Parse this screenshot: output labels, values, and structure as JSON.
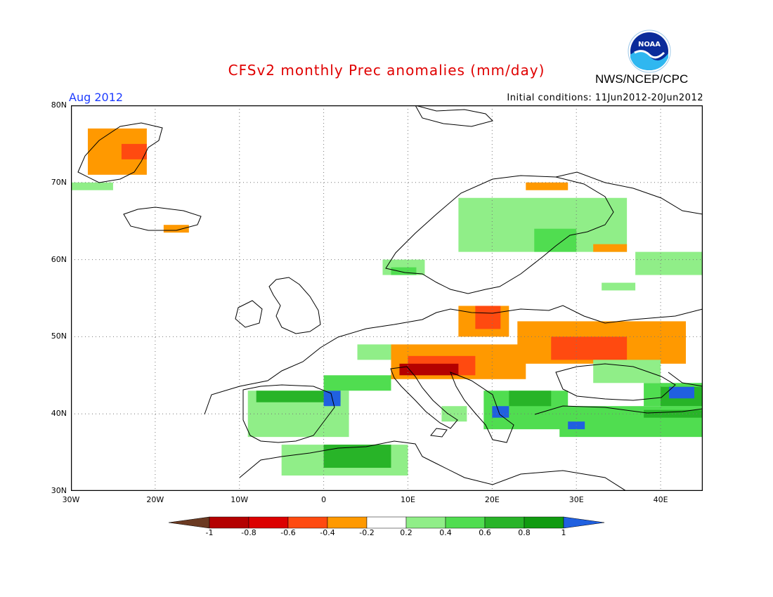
{
  "header": {
    "title": "CFSv2 monthly Prec anomalies (mm/day)",
    "period": "Aug 2012",
    "initial_conditions": "Initial conditions: 11Jun2012-20Jun2012",
    "agency": "NWS/NCEP/CPC",
    "logo_text": "NOAA"
  },
  "axes": {
    "lat_labels": [
      "80N",
      "70N",
      "60N",
      "50N",
      "40N",
      "30N"
    ],
    "lon_labels": [
      "30W",
      "20W",
      "10W",
      "0",
      "10E",
      "20E",
      "30E",
      "40E"
    ],
    "lon_range": [
      -30,
      45
    ],
    "lat_range": [
      30,
      80
    ]
  },
  "colorbar": {
    "labels": [
      "-1",
      "-0.8",
      "-0.6",
      "-0.4",
      "-0.2",
      "0.2",
      "0.4",
      "0.6",
      "0.8",
      "1"
    ],
    "colors": [
      "#6b3a22",
      "#b40000",
      "#dc0000",
      "#ff4a10",
      "#ff9900",
      "#ffffff",
      "#90ee88",
      "#50dd50",
      "#28b428",
      "#109b10",
      "#2060e0"
    ]
  },
  "anomaly_regions": [
    {
      "color": "#ff9900",
      "lon": [
        -28,
        -21
      ],
      "lat": [
        71,
        77
      ]
    },
    {
      "color": "#ff4a10",
      "lon": [
        -24,
        -21
      ],
      "lat": [
        73,
        75
      ]
    },
    {
      "color": "#90ee88",
      "lon": [
        -30,
        -25
      ],
      "lat": [
        69,
        70
      ]
    },
    {
      "color": "#ff9900",
      "lon": [
        -19,
        -16
      ],
      "lat": [
        63.5,
        64.5
      ]
    },
    {
      "color": "#ff9900",
      "lon": [
        24,
        29
      ],
      "lat": [
        69,
        70
      ]
    },
    {
      "color": "#90ee88",
      "lon": [
        16,
        36
      ],
      "lat": [
        61,
        68
      ]
    },
    {
      "color": "#50dd50",
      "lon": [
        25,
        30
      ],
      "lat": [
        61,
        64
      ]
    },
    {
      "color": "#ff9900",
      "lon": [
        32,
        36
      ],
      "lat": [
        61,
        62
      ]
    },
    {
      "color": "#90ee88",
      "lon": [
        7,
        12
      ],
      "lat": [
        58,
        60
      ]
    },
    {
      "color": "#50dd50",
      "lon": [
        8,
        11
      ],
      "lat": [
        58,
        59
      ]
    },
    {
      "color": "#90ee88",
      "lon": [
        37,
        45
      ],
      "lat": [
        58,
        61
      ]
    },
    {
      "color": "#90ee88",
      "lon": [
        33,
        37
      ],
      "lat": [
        56,
        57
      ]
    },
    {
      "color": "#ff9900",
      "lon": [
        16,
        22
      ],
      "lat": [
        50,
        54
      ]
    },
    {
      "color": "#ff4a10",
      "lon": [
        18,
        21
      ],
      "lat": [
        51,
        54
      ]
    },
    {
      "color": "#ff9900",
      "lon": [
        23,
        43
      ],
      "lat": [
        46.5,
        52
      ]
    },
    {
      "color": "#ff4a10",
      "lon": [
        27,
        36
      ],
      "lat": [
        47,
        50
      ]
    },
    {
      "color": "#ff9900",
      "lon": [
        8,
        24
      ],
      "lat": [
        44.5,
        49
      ]
    },
    {
      "color": "#ff4a10",
      "lon": [
        10,
        18
      ],
      "lat": [
        45,
        47.5
      ]
    },
    {
      "color": "#b40000",
      "lon": [
        9,
        16
      ],
      "lat": [
        45,
        46.5
      ]
    },
    {
      "color": "#90ee88",
      "lon": [
        4,
        8
      ],
      "lat": [
        47,
        49
      ]
    },
    {
      "color": "#90ee88",
      "lon": [
        -9,
        3
      ],
      "lat": [
        37,
        43
      ]
    },
    {
      "color": "#28b428",
      "lon": [
        -8,
        2
      ],
      "lat": [
        41.5,
        43
      ]
    },
    {
      "color": "#2060e0",
      "lon": [
        0,
        2
      ],
      "lat": [
        41,
        43
      ]
    },
    {
      "color": "#50dd50",
      "lon": [
        0,
        8
      ],
      "lat": [
        43,
        45
      ]
    },
    {
      "color": "#90ee88",
      "lon": [
        -5,
        10
      ],
      "lat": [
        32,
        36
      ]
    },
    {
      "color": "#28b428",
      "lon": [
        0,
        8
      ],
      "lat": [
        33,
        36
      ]
    },
    {
      "color": "#90ee88",
      "lon": [
        14,
        17
      ],
      "lat": [
        39,
        41
      ]
    },
    {
      "color": "#50dd50",
      "lon": [
        19,
        29
      ],
      "lat": [
        38,
        43
      ]
    },
    {
      "color": "#28b428",
      "lon": [
        22,
        27
      ],
      "lat": [
        41,
        43
      ]
    },
    {
      "color": "#2060e0",
      "lon": [
        20,
        22
      ],
      "lat": [
        39.5,
        41
      ]
    },
    {
      "color": "#50dd50",
      "lon": [
        28,
        45
      ],
      "lat": [
        37,
        41
      ]
    },
    {
      "color": "#28b428",
      "lon": [
        38,
        45
      ],
      "lat": [
        39.5,
        40.5
      ]
    },
    {
      "color": "#2060e0",
      "lon": [
        29,
        31
      ],
      "lat": [
        38,
        39
      ]
    },
    {
      "color": "#50dd50",
      "lon": [
        38,
        45
      ],
      "lat": [
        41,
        44
      ]
    },
    {
      "color": "#28b428",
      "lon": [
        40,
        45
      ],
      "lat": [
        41,
        43.5
      ]
    },
    {
      "color": "#2060e0",
      "lon": [
        41,
        44
      ],
      "lat": [
        42,
        43.5
      ]
    },
    {
      "color": "#90ee88",
      "lon": [
        32,
        40
      ],
      "lat": [
        44,
        47
      ]
    }
  ]
}
